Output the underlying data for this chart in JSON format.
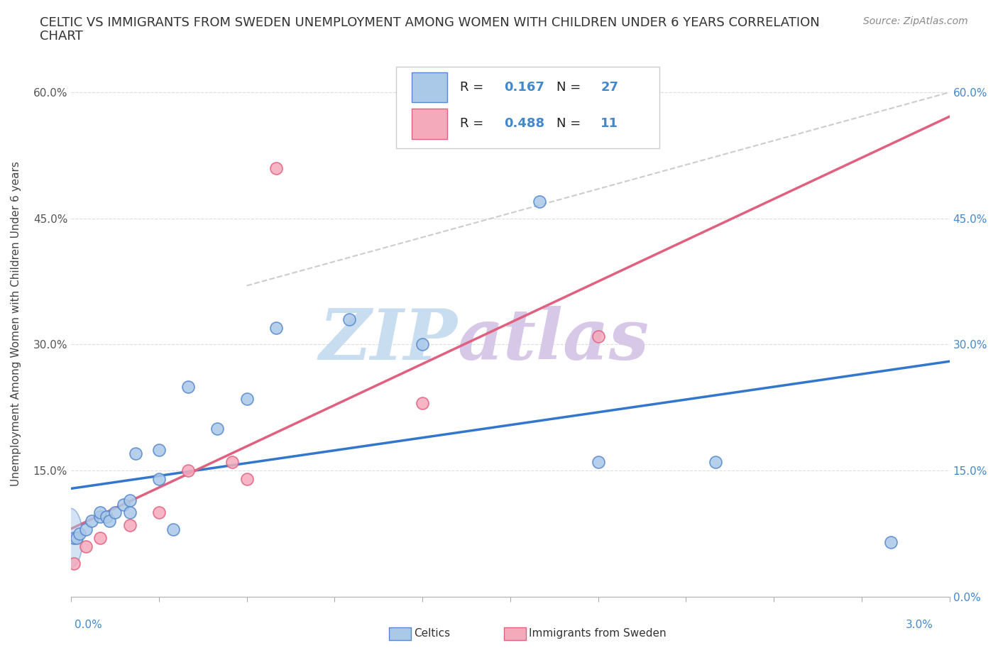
{
  "title_line1": "CELTIC VS IMMIGRANTS FROM SWEDEN UNEMPLOYMENT AMONG WOMEN WITH CHILDREN UNDER 6 YEARS CORRELATION",
  "title_line2": "CHART",
  "source": "Source: ZipAtlas.com",
  "ylabel": "Unemployment Among Women with Children Under 6 years",
  "legend_label1": "Celtics",
  "legend_label2": "Immigrants from Sweden",
  "r1": 0.167,
  "n1": 27,
  "r2": 0.488,
  "n2": 11,
  "celtics_x": [
    0.0001,
    0.0002,
    0.0003,
    0.0005,
    0.0007,
    0.001,
    0.001,
    0.0012,
    0.0013,
    0.0015,
    0.0018,
    0.002,
    0.002,
    0.0022,
    0.003,
    0.003,
    0.0035,
    0.004,
    0.005,
    0.006,
    0.007,
    0.0095,
    0.012,
    0.016,
    0.018,
    0.022,
    0.028
  ],
  "celtics_y": [
    0.07,
    0.07,
    0.075,
    0.08,
    0.09,
    0.095,
    0.1,
    0.095,
    0.09,
    0.1,
    0.11,
    0.1,
    0.115,
    0.17,
    0.175,
    0.14,
    0.08,
    0.25,
    0.2,
    0.235,
    0.32,
    0.33,
    0.3,
    0.47,
    0.16,
    0.16,
    0.065
  ],
  "immigrants_x": [
    0.0001,
    0.0005,
    0.001,
    0.002,
    0.003,
    0.004,
    0.0055,
    0.006,
    0.007,
    0.012,
    0.018
  ],
  "immigrants_y": [
    0.04,
    0.06,
    0.07,
    0.085,
    0.1,
    0.15,
    0.16,
    0.14,
    0.51,
    0.23,
    0.31
  ],
  "celtics_color": "#aac8e8",
  "celtics_edge_color": "#5588cc",
  "immigrants_color": "#f5aabb",
  "immigrants_edge_color": "#e06080",
  "trend_celtics_color": "#3377cc",
  "trend_immigrants_color": "#e06080",
  "trend_dashed_color": "#cccccc",
  "watermark_color_zip": "#c8ddf0",
  "watermark_color_atlas": "#d8c8e8",
  "xlim": [
    0.0,
    0.03
  ],
  "ylim": [
    0.0,
    0.65
  ],
  "ytick_values": [
    0.0,
    0.15,
    0.3,
    0.45,
    0.6
  ],
  "ytick_labels": [
    "",
    "15.0%",
    "30.0%",
    "45.0%",
    "60.0%"
  ],
  "ytick_labels_right": [
    "0.0%",
    "15.0%",
    "30.0%",
    "45.0%",
    "60.0%"
  ],
  "xtick_count": 10,
  "figsize": [
    14.06,
    9.3
  ],
  "dpi": 100
}
